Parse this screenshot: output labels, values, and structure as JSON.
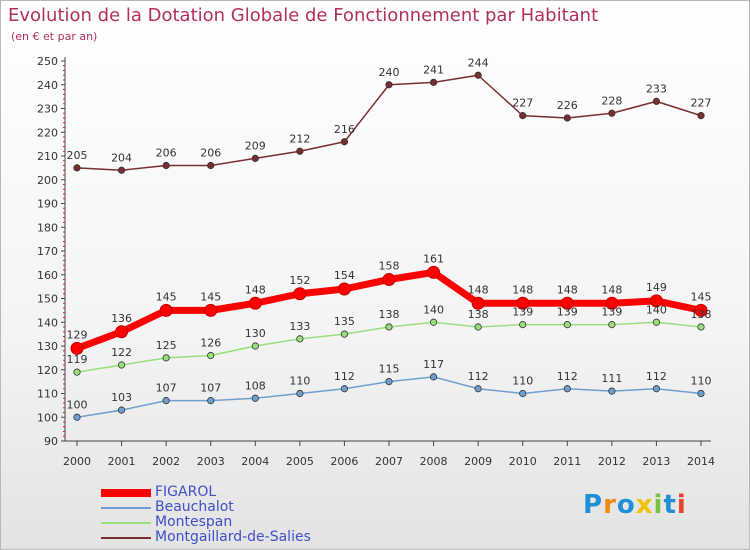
{
  "title": "Evolution de la Dotation Globale de Fonctionnement par Habitant",
  "subtitle": "(en € et par an)",
  "logo": {
    "text": "Proxiti",
    "letters": [
      "P",
      "r",
      "o",
      "x",
      "i",
      "t",
      "i"
    ],
    "colors": [
      "#1f8fd6",
      "#ef8a12",
      "#1f8fd6",
      "#f2c200",
      "#7ac143",
      "#1f8fd6",
      "#e8432e"
    ]
  },
  "chart_data": {
    "type": "line",
    "title": "Evolution de la Dotation Globale de Fonctionnement par Habitant",
    "subtitle": "(en € et par an)",
    "xlabel": "",
    "ylabel": "",
    "x": [
      "2000",
      "2001",
      "2002",
      "2003",
      "2004",
      "2005",
      "2006",
      "2007",
      "2008",
      "2009",
      "2010",
      "2011",
      "2012",
      "2013",
      "2014"
    ],
    "ylim": [
      90,
      250
    ],
    "yticks": [
      90,
      100,
      110,
      120,
      130,
      140,
      150,
      160,
      170,
      180,
      190,
      200,
      210,
      220,
      230,
      240,
      250
    ],
    "grid": false,
    "legend_position": "bottom-left",
    "series": [
      {
        "name": "FIGAROL",
        "color": "#ff0000",
        "values": [
          129,
          136,
          145,
          145,
          148,
          152,
          154,
          158,
          161,
          148,
          148,
          148,
          148,
          149,
          145
        ],
        "labels": [
          "129",
          "136",
          "145",
          "145",
          "148",
          "152",
          "154",
          "158",
          "161",
          "148",
          "148",
          "148",
          "148",
          "149",
          "145"
        ]
      },
      {
        "name": "Beauchalot",
        "color": "#6f9fd1",
        "values": [
          100,
          103,
          107,
          107,
          108,
          110,
          112,
          115,
          117,
          112,
          110,
          112,
          111,
          112,
          110
        ],
        "labels": [
          "100",
          "103",
          "107",
          "107",
          "108",
          "110",
          "112",
          "115",
          "117",
          "112",
          "110",
          "112",
          "111",
          "112",
          "110"
        ]
      },
      {
        "name": "Montespan",
        "color": "#98e07b",
        "values": [
          119,
          122,
          125,
          126,
          130,
          133,
          135,
          138,
          140,
          138,
          139,
          139,
          139,
          140,
          138
        ],
        "labels": [
          "119",
          "122",
          "125",
          "126",
          "130",
          "133",
          "135",
          "138",
          "140",
          "138",
          "139",
          "139",
          "139",
          "140",
          "138"
        ]
      },
      {
        "name": "Montgaillard-de-Salies",
        "color": "#7a2e2e",
        "values": [
          205,
          204,
          206,
          206,
          209,
          212,
          216,
          240,
          241,
          244,
          227,
          226,
          228,
          233,
          227
        ],
        "labels": [
          "205",
          "204",
          "206",
          "206",
          "209",
          "212",
          "216",
          "240",
          "241",
          "244",
          "227",
          "226",
          "228",
          "233",
          "227"
        ]
      }
    ]
  }
}
